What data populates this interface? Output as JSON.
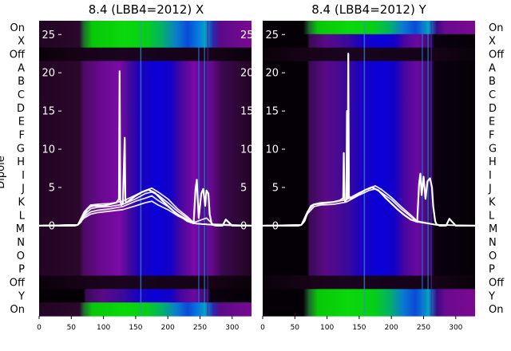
{
  "chart_data": {
    "type": "heatmap",
    "ylabel": "Dipole",
    "row_labels": [
      "On",
      "X",
      "Off",
      "A",
      "B",
      "C",
      "D",
      "E",
      "F",
      "G",
      "H",
      "I",
      "J",
      "K",
      "L",
      "M",
      "N",
      "O",
      "P",
      "Off",
      "Y",
      "On"
    ],
    "x_ticks": [
      0,
      50,
      100,
      150,
      200,
      250,
      300
    ],
    "xlim": [
      0,
      330
    ],
    "inner_y_ticks": [
      0,
      5,
      10,
      15,
      20,
      25
    ],
    "inner_ylim": [
      -11.8,
      26.8
    ],
    "panels": [
      {
        "title": "8.4 (LBB4=2012) X",
        "channel": "X",
        "series": [
          {
            "x": [
              0,
              55,
              60,
              65,
              70,
              75,
              80,
              85,
              90,
              100,
              110,
              120,
              124,
              125,
              126,
              128,
              130,
              133,
              134,
              135,
              137,
              140,
              150,
              160,
              170,
              180,
              190,
              200,
              210,
              220,
              230,
              240,
              243,
              245,
              246,
              248,
              252,
              255,
              258,
              260,
              263,
              265,
              268,
              270,
              275,
              285,
              290,
              300,
              330
            ],
            "y": [
              0,
              0,
              0.1,
              0.5,
              1.5,
              2.2,
              2.5,
              2.6,
              2.6,
              2.6,
              2.8,
              3.0,
              3.5,
              20.2,
              3.2,
              2.7,
              2.9,
              11.5,
              3.5,
              3.0,
              3.1,
              3.3,
              3.9,
              4.4,
              4.7,
              4.3,
              3.4,
              2.6,
              1.8,
              1.2,
              0.6,
              0.3,
              4.8,
              6.0,
              4.2,
              1.0,
              4.2,
              4.8,
              2.6,
              4.6,
              4.2,
              1.5,
              0.3,
              0.1,
              0,
              0,
              0.8,
              0,
              0
            ]
          },
          {
            "x": [
              0,
              60,
              70,
              80,
              90,
              110,
              130,
              150,
              165,
              175,
              185,
              200,
              215,
              230,
              240,
              260,
              270,
              330
            ],
            "y": [
              0,
              0.1,
              1.8,
              2.7,
              2.8,
              2.9,
              3.2,
              4.0,
              4.6,
              4.9,
              4.4,
              3.5,
              2.2,
              1.2,
              0.4,
              1.0,
              0.2,
              0
            ]
          },
          {
            "x": [
              0,
              60,
              70,
              80,
              90,
              110,
              130,
              150,
              165,
              175,
              185,
              200,
              215,
              230,
              240,
              270,
              330
            ],
            "y": [
              0,
              0.1,
              1.2,
              1.8,
              2.0,
              2.2,
              2.5,
              3.2,
              3.6,
              3.9,
              3.3,
              2.5,
              1.5,
              0.8,
              0.3,
              0.1,
              0
            ]
          },
          {
            "x": [
              0,
              60,
              70,
              80,
              90,
              110,
              130,
              150,
              165,
              175,
              185,
              200,
              215,
              230,
              240,
              270,
              330
            ],
            "y": [
              0,
              0.1,
              1.0,
              1.5,
              1.7,
              1.9,
              2.1,
              2.6,
              3.0,
              3.2,
              2.7,
              2.1,
              1.3,
              0.7,
              0.3,
              0.1,
              0
            ]
          },
          {
            "x": [
              0,
              60,
              70,
              80,
              90,
              110,
              130,
              150,
              165,
              175,
              185,
              200,
              215,
              230,
              240,
              270,
              330
            ],
            "y": [
              0,
              0.1,
              1.4,
              2.2,
              2.4,
              2.5,
              2.8,
              3.5,
              4.2,
              4.4,
              4.0,
              3.0,
              1.9,
              1.0,
              0.3,
              0.1,
              0
            ]
          }
        ]
      },
      {
        "title": "8.4 (LBB4=2012) Y",
        "channel": "Y",
        "series": [
          {
            "x": [
              0,
              55,
              60,
              65,
              70,
              75,
              80,
              90,
              100,
              110,
              120,
              125,
              126,
              127,
              128,
              130,
              131,
              132,
              133,
              134,
              135,
              140,
              150,
              160,
              170,
              180,
              190,
              200,
              210,
              220,
              230,
              240,
              243,
              245,
              247,
              250,
              253,
              256,
              260,
              263,
              265,
              268,
              270,
              275,
              285,
              290,
              300,
              330
            ],
            "y": [
              0,
              0,
              0.1,
              0.6,
              1.8,
              2.6,
              2.8,
              2.9,
              3.0,
              3.1,
              3.3,
              3.6,
              9.5,
              3.4,
              3.2,
              3.4,
              15.0,
              3.6,
              22.5,
              4.0,
              3.6,
              3.6,
              4.2,
              4.7,
              5.0,
              4.6,
              3.7,
              2.9,
              2.1,
              1.4,
              0.8,
              0.5,
              5.5,
              6.8,
              4.0,
              6.4,
              3.5,
              5.8,
              6.2,
              5.0,
              2.5,
              0.6,
              0.2,
              0,
              0,
              0.9,
              0,
              0
            ]
          },
          {
            "x": [
              0,
              60,
              70,
              80,
              90,
              110,
              130,
              150,
              165,
              175,
              185,
              200,
              215,
              230,
              240,
              270,
              330
            ],
            "y": [
              0,
              0.1,
              1.6,
              2.5,
              2.7,
              2.8,
              3.1,
              4.0,
              4.6,
              4.8,
              4.3,
              3.4,
              2.2,
              1.2,
              0.5,
              0.1,
              0
            ]
          },
          {
            "x": [
              0,
              60,
              70,
              80,
              90,
              110,
              130,
              150,
              165,
              175,
              185,
              200,
              215,
              230,
              240,
              270,
              330
            ],
            "y": [
              0,
              0.1,
              1.9,
              2.8,
              3.0,
              3.1,
              3.4,
              4.3,
              4.9,
              5.2,
              4.7,
              3.7,
              2.5,
              1.4,
              0.6,
              0.1,
              0
            ]
          }
        ]
      }
    ]
  }
}
